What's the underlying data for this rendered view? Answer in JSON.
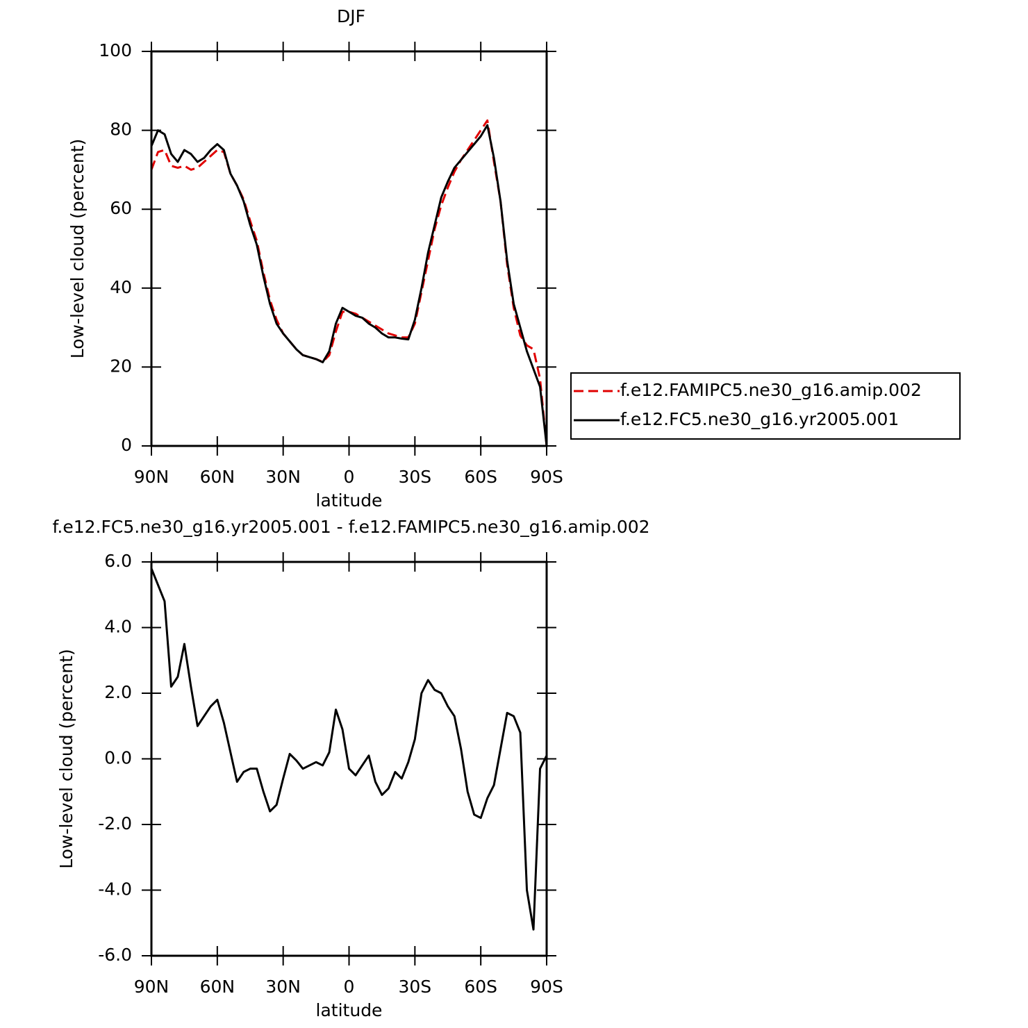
{
  "chart_data": [
    {
      "type": "line",
      "title": "DJF",
      "xlabel": "latitude",
      "ylabel": "Low-level cloud (percent)",
      "x": [
        90,
        87,
        84,
        81,
        78,
        75,
        72,
        69,
        66,
        63,
        60,
        57,
        54,
        51,
        48,
        45,
        42,
        39,
        36,
        33,
        30,
        27,
        24,
        21,
        18,
        15,
        12,
        9,
        6,
        3,
        0,
        -3,
        -6,
        -9,
        -12,
        -15,
        -18,
        -21,
        -24,
        -27,
        -30,
        -33,
        -36,
        -39,
        -42,
        -45,
        -48,
        -51,
        -54,
        -57,
        -60,
        -63,
        -66,
        -69,
        -72,
        -75,
        -78,
        -81,
        -84,
        -87,
        -90
      ],
      "series": [
        {
          "name": "f.e12.FAMIPC5.ne30_g16.amip.002",
          "color": "#e00000",
          "dash": "dashed",
          "values": [
            70,
            74.5,
            75,
            71,
            70.5,
            71,
            70,
            70.5,
            72,
            73.5,
            75,
            74.5,
            69,
            66,
            62.5,
            57,
            52,
            44,
            37,
            32,
            28.5,
            26.5,
            24.5,
            23,
            22.5,
            22,
            21.3,
            23,
            29,
            34,
            34,
            33.5,
            32.5,
            31.5,
            30.5,
            29.5,
            28.5,
            28,
            27.5,
            27.5,
            31,
            39,
            47,
            55,
            61,
            65.5,
            69.5,
            72.5,
            75,
            77.5,
            80,
            82.5,
            72,
            62,
            46,
            35,
            28,
            25.5,
            24.5,
            17,
            0
          ]
        },
        {
          "name": "f.e12.FC5.ne30_g16.yr2005.001",
          "color": "#000000",
          "dash": "solid",
          "values": [
            76,
            80,
            79,
            74,
            72,
            75,
            74,
            72,
            73,
            75,
            76.5,
            75,
            69,
            66,
            62,
            56,
            51,
            43,
            36,
            31,
            28.5,
            26.5,
            24.5,
            23,
            22.5,
            22,
            21.2,
            24,
            31,
            35,
            34,
            33,
            32.5,
            31,
            30,
            28.5,
            27.5,
            27.5,
            27.2,
            27,
            32,
            40,
            49,
            56,
            63,
            67,
            70.5,
            72.5,
            74.5,
            76.5,
            78.5,
            81.3,
            73,
            62,
            47,
            36,
            30,
            24,
            19.5,
            15,
            0
          ]
        }
      ],
      "xlim": [
        90,
        -90
      ],
      "xticks": [
        {
          "value": 90,
          "label": "90N"
        },
        {
          "value": 60,
          "label": "60N"
        },
        {
          "value": 30,
          "label": "30N"
        },
        0,
        {
          "value": -30,
          "label": "30S"
        },
        {
          "value": -60,
          "label": "60S"
        },
        {
          "value": -90,
          "label": "90S"
        }
      ],
      "ylim": [
        0,
        100
      ],
      "yticks": [
        0,
        20,
        40,
        60,
        80,
        100
      ],
      "legend": "right"
    },
    {
      "type": "line",
      "title": "f.e12.FC5.ne30_g16.yr2005.001 - f.e12.FAMIPC5.ne30_g16.amip.002",
      "xlabel": "latitude",
      "ylabel": "Low-level cloud (percent)",
      "x": [
        90,
        87,
        84,
        81,
        78,
        75,
        72,
        69,
        66,
        63,
        60,
        57,
        54,
        51,
        48,
        45,
        42,
        39,
        36,
        33,
        30,
        27,
        24,
        21,
        18,
        15,
        12,
        9,
        6,
        3,
        0,
        -3,
        -6,
        -9,
        -12,
        -15,
        -18,
        -21,
        -24,
        -27,
        -30,
        -33,
        -36,
        -39,
        -42,
        -45,
        -48,
        -51,
        -54,
        -57,
        -60,
        -63,
        -66,
        -69,
        -72,
        -75,
        -78,
        -81,
        -84,
        -87,
        -90
      ],
      "color": "#000000",
      "values": [
        5.8,
        5.3,
        4.8,
        2.2,
        2.5,
        3.5,
        2.2,
        1.0,
        1.3,
        1.6,
        1.8,
        1.1,
        0.2,
        -0.7,
        -0.4,
        -0.3,
        -0.3,
        -1.0,
        -1.6,
        -1.4,
        -0.6,
        0.15,
        -0.05,
        -0.3,
        -0.2,
        -0.1,
        -0.2,
        0.2,
        1.5,
        0.9,
        -0.3,
        -0.5,
        -0.2,
        0.1,
        -0.7,
        -1.1,
        -0.9,
        -0.4,
        -0.6,
        -0.1,
        0.6,
        2.0,
        2.4,
        2.1,
        2.0,
        1.6,
        1.3,
        0.3,
        -1.0,
        -1.7,
        -1.8,
        -1.2,
        -0.8,
        0.3,
        1.4,
        1.3,
        0.8,
        -4.0,
        -5.2,
        -0.3,
        0.1
      ],
      "xlim": [
        90,
        -90
      ],
      "xticks": [
        {
          "value": 90,
          "label": "90N"
        },
        {
          "value": 60,
          "label": "60N"
        },
        {
          "value": 30,
          "label": "30N"
        },
        0,
        {
          "value": -30,
          "label": "30S"
        },
        {
          "value": -60,
          "label": "60S"
        },
        {
          "value": -90,
          "label": "90S"
        }
      ],
      "ylim": [
        -6,
        6
      ],
      "yticks": [
        {
          "value": -6,
          "label": "-6.0"
        },
        {
          "value": -4,
          "label": "-4.0"
        },
        {
          "value": -2,
          "label": "-2.0"
        },
        {
          "value": 0,
          "label": "0.0"
        },
        {
          "value": 2,
          "label": "2.0"
        },
        {
          "value": 4,
          "label": "4.0"
        },
        {
          "value": 6,
          "label": "6.0"
        }
      ]
    }
  ]
}
